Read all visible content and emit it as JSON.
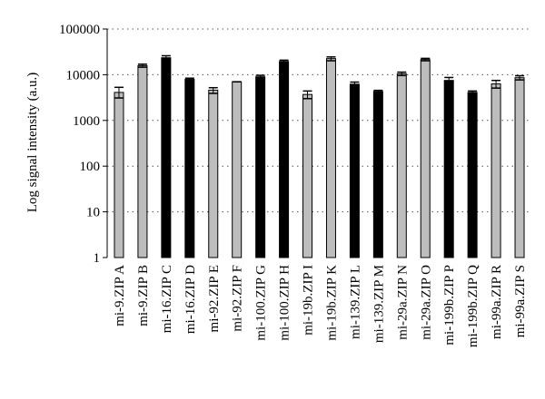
{
  "chart_data": {
    "type": "bar",
    "title": "",
    "xlabel": "",
    "ylabel": "Log signal intensity (a.u.)",
    "yscale": "log",
    "ylim": [
      1,
      100000
    ],
    "yticks": [
      "1",
      "10",
      "100",
      "1000",
      "10000",
      "100000"
    ],
    "grid": "horizontal-dotted",
    "legend": "none",
    "colors": {
      "gray": "#bdbdbd",
      "black": "#000000"
    },
    "categories": [
      "mi-9.ZIP A",
      "mi-9.ZIP B",
      "mi-16.ZIP C",
      "mi-16.ZIP D",
      "mi-92.ZIP E",
      "mi-92.ZIP F",
      "mi-100.ZIP G",
      "mi-100.ZIP H",
      "mi-19b.ZIP I",
      "mi-19b.ZIP K",
      "mi-139.ZIP L",
      "mi-139.ZIP M",
      "mi-29a.ZIP N",
      "mi-29a.ZIP O",
      "mi-199b.ZIP P",
      "mi-199b.ZIP Q",
      "mi-99a.ZIP R",
      "mi-99a.ZIP S"
    ],
    "values": [
      4100,
      15800,
      23500,
      7900,
      4600,
      7000,
      9000,
      19500,
      3700,
      22500,
      6200,
      4300,
      10500,
      21500,
      7500,
      4100,
      6300,
      8600
    ],
    "err_low": [
      3100,
      14600,
      21000,
      7400,
      3900,
      7000,
      8300,
      18200,
      3000,
      20200,
      5500,
      4050,
      9600,
      20200,
      6300,
      3800,
      5100,
      7700
    ],
    "err_high": [
      5300,
      17000,
      26000,
      8400,
      5200,
      7000,
      9700,
      20800,
      4400,
      24500,
      6900,
      4550,
      11400,
      22800,
      8700,
      4400,
      7500,
      9500
    ],
    "bar_colors": [
      "gray",
      "gray",
      "black",
      "black",
      "gray",
      "gray",
      "black",
      "black",
      "gray",
      "gray",
      "black",
      "black",
      "gray",
      "gray",
      "black",
      "black",
      "gray",
      "gray"
    ]
  }
}
